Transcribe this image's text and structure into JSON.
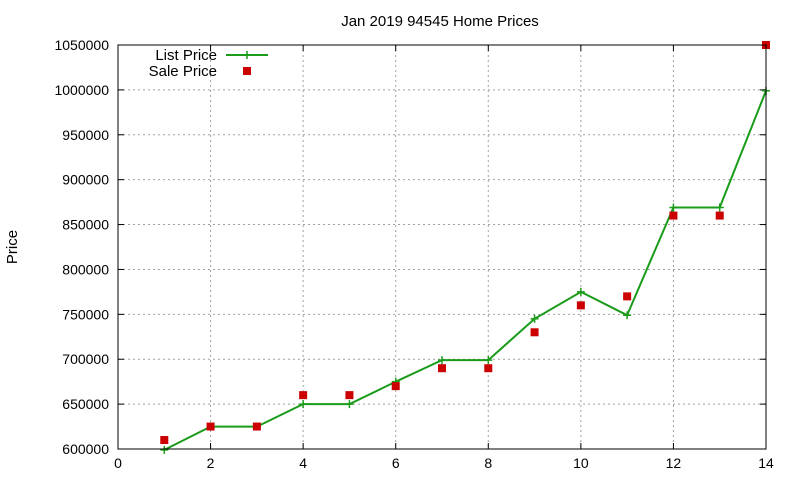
{
  "chart_data": {
    "type": "line",
    "title": "Jan 2019 94545 Home Prices",
    "xlabel": "",
    "ylabel": "Price",
    "xlim": [
      0,
      14
    ],
    "ylim": [
      600000,
      1050000
    ],
    "x_ticks": [
      "0",
      "2",
      "4",
      "6",
      "8",
      "10",
      "12",
      "14"
    ],
    "y_ticks": [
      "600000",
      "650000",
      "700000",
      "750000",
      "800000",
      "850000",
      "900000",
      "950000",
      "1000000",
      "1050000"
    ],
    "grid": true,
    "legend_position": "top-left",
    "series": [
      {
        "name": "List Price",
        "style": "line-with-plus-markers",
        "color": "#1a9b1a",
        "x": [
          1,
          2,
          3,
          4,
          5,
          6,
          7,
          8,
          9,
          10,
          11,
          12,
          13,
          14
        ],
        "y": [
          599000,
          625000,
          625000,
          650000,
          650000,
          675000,
          699000,
          699000,
          745000,
          775000,
          749000,
          869000,
          869000,
          999000
        ]
      },
      {
        "name": "Sale Price",
        "style": "square-markers",
        "color": "#cc0000",
        "x": [
          1,
          2,
          3,
          4,
          5,
          6,
          7,
          8,
          9,
          10,
          11,
          12,
          13,
          14
        ],
        "y": [
          610000,
          625000,
          625000,
          660000,
          660000,
          670000,
          690000,
          690000,
          730000,
          760000,
          770000,
          860000,
          860000,
          1050000
        ]
      }
    ]
  }
}
